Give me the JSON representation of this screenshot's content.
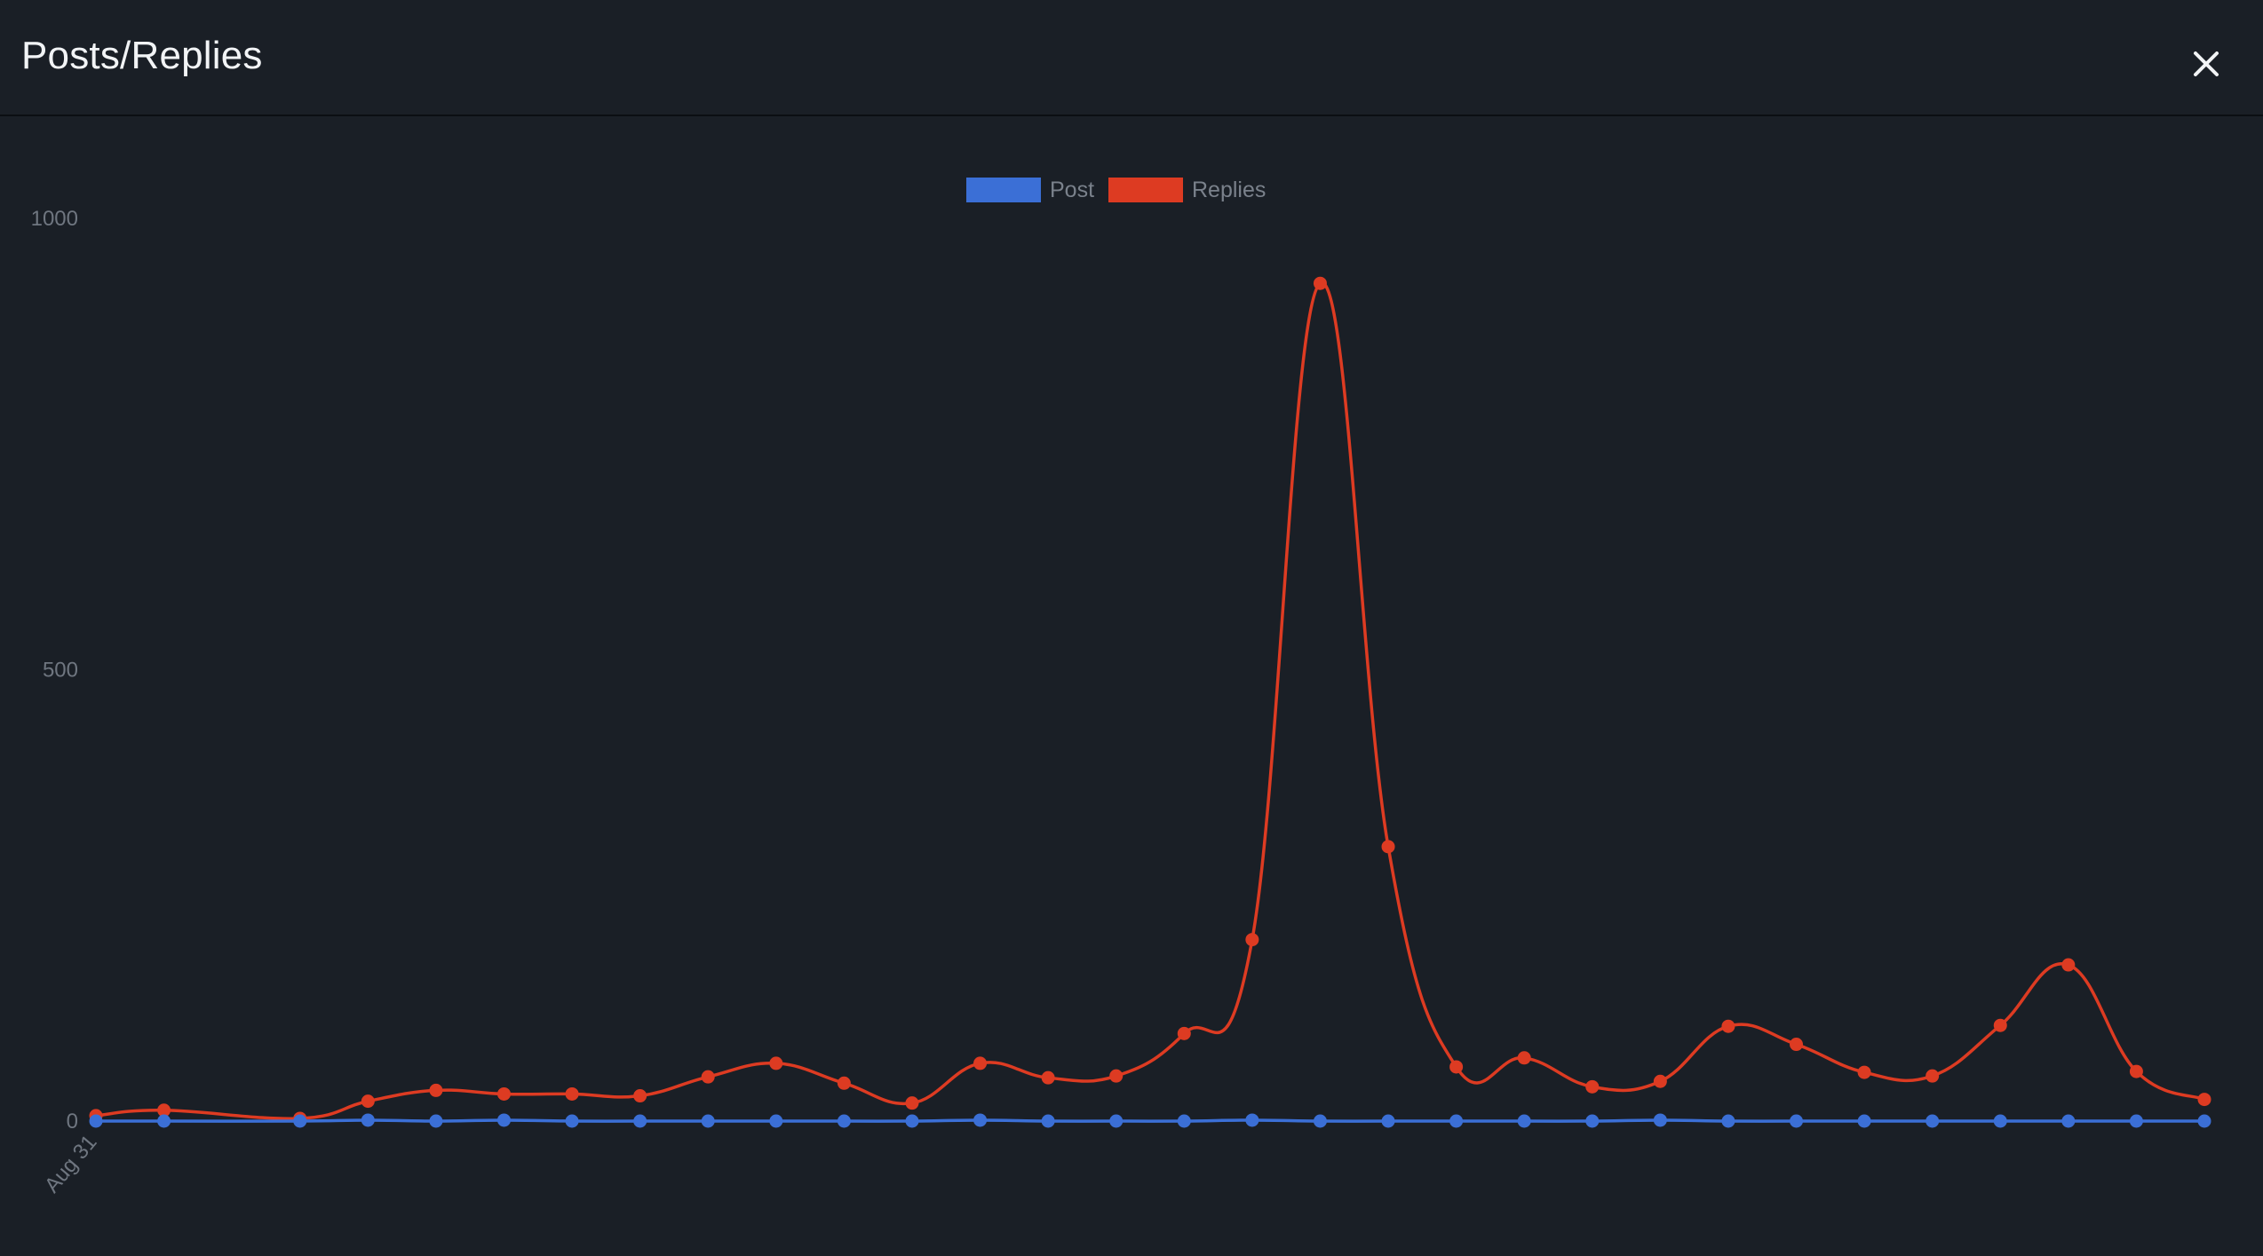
{
  "header": {
    "title": "Posts/Replies",
    "close_icon": "close-icon"
  },
  "colors": {
    "background": "#1a1f26",
    "post": "#3b6fd6",
    "replies": "#dd3b22",
    "tick_text": "#6f7680"
  },
  "chart_data": {
    "type": "line",
    "title": "",
    "xlabel": "",
    "ylabel": "",
    "ylim": [
      0,
      1000
    ],
    "yticks": [
      "0",
      "500",
      "1000"
    ],
    "xtick_labels": [
      "Aug 31"
    ],
    "legend_position": "top-center",
    "grid": false,
    "curve": "smooth",
    "series": [
      {
        "name": "Post",
        "color": "#3b6fd6",
        "x": [
          0,
          1,
          3,
          4,
          5,
          6,
          7,
          8,
          9,
          10,
          11,
          12,
          13,
          14,
          15,
          16,
          17,
          18,
          19,
          20,
          21,
          22,
          23,
          24,
          25,
          26,
          27,
          28,
          29,
          30,
          31
        ],
        "values": [
          0,
          0,
          0,
          1,
          0,
          1,
          0,
          0,
          0,
          0,
          0,
          0,
          1,
          0,
          0,
          0,
          1,
          0,
          0,
          0,
          0,
          0,
          1,
          0,
          0,
          0,
          0,
          0,
          0,
          0,
          0
        ]
      },
      {
        "name": "Replies",
        "color": "#dd3b22",
        "x": [
          0,
          1,
          3,
          4,
          5,
          6,
          7,
          8,
          9,
          10,
          11,
          12,
          13,
          14,
          15,
          16,
          17,
          18,
          19,
          20,
          21,
          22,
          23,
          24,
          25,
          26,
          27,
          28,
          29,
          30,
          31
        ],
        "values": [
          6,
          12,
          3,
          22,
          34,
          30,
          30,
          28,
          49,
          64,
          42,
          20,
          64,
          48,
          50,
          97,
          201,
          928,
          304,
          60,
          70,
          38,
          44,
          105,
          85,
          54,
          50,
          106,
          173,
          55,
          24
        ]
      }
    ]
  }
}
